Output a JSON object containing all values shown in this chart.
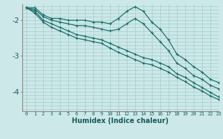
{
  "xlabel": "Humidex (Indice chaleur)",
  "bg_color": "#cce8e8",
  "grid_color": "#aacfcf",
  "line_color": "#1a6e6a",
  "xlim": [
    -0.5,
    23
  ],
  "ylim": [
    -4.55,
    -1.55
  ],
  "yticks": [
    -4,
    -3,
    -2
  ],
  "xticks": [
    0,
    1,
    2,
    3,
    4,
    5,
    6,
    7,
    8,
    9,
    10,
    11,
    12,
    13,
    14,
    15,
    16,
    17,
    18,
    19,
    20,
    21,
    22,
    23
  ],
  "series": [
    {
      "x": [
        0,
        1,
        2,
        3,
        4,
        5,
        6,
        7,
        8,
        9,
        10,
        11,
        12,
        13,
        14,
        15,
        16,
        17,
        18,
        19,
        20,
        21,
        22,
        23
      ],
      "y": [
        -1.65,
        -1.65,
        -1.85,
        -1.95,
        -1.95,
        -2.0,
        -2.0,
        -2.0,
        -2.05,
        -2.05,
        -2.1,
        -1.95,
        -1.75,
        -1.62,
        -1.75,
        -2.05,
        -2.25,
        -2.55,
        -2.95,
        -3.1,
        -3.3,
        -3.45,
        -3.65,
        -3.75
      ]
    },
    {
      "x": [
        0,
        1,
        2,
        3,
        4,
        5,
        6,
        7,
        8,
        9,
        10,
        11,
        12,
        13,
        14,
        15,
        16,
        17,
        18,
        19,
        20,
        21,
        22,
        23
      ],
      "y": [
        -1.65,
        -1.7,
        -1.9,
        -2.0,
        -2.05,
        -2.1,
        -2.15,
        -2.15,
        -2.2,
        -2.25,
        -2.3,
        -2.25,
        -2.1,
        -1.95,
        -2.1,
        -2.35,
        -2.6,
        -2.85,
        -3.2,
        -3.35,
        -3.55,
        -3.65,
        -3.82,
        -3.92
      ]
    },
    {
      "x": [
        0,
        1,
        2,
        3,
        4,
        5,
        6,
        7,
        8,
        9,
        10,
        11,
        12,
        13,
        14,
        15,
        16,
        17,
        18,
        19,
        20,
        21,
        22,
        23
      ],
      "y": [
        -1.65,
        -1.75,
        -2.0,
        -2.1,
        -2.2,
        -2.3,
        -2.4,
        -2.45,
        -2.5,
        -2.55,
        -2.65,
        -2.75,
        -2.85,
        -2.95,
        -3.05,
        -3.1,
        -3.2,
        -3.3,
        -3.5,
        -3.6,
        -3.75,
        -3.88,
        -4.02,
        -4.15
      ]
    },
    {
      "x": [
        0,
        1,
        2,
        3,
        4,
        5,
        6,
        7,
        8,
        9,
        10,
        11,
        12,
        13,
        14,
        15,
        16,
        17,
        18,
        19,
        20,
        21,
        22,
        23
      ],
      "y": [
        -1.65,
        -1.8,
        -2.05,
        -2.2,
        -2.3,
        -2.4,
        -2.5,
        -2.55,
        -2.6,
        -2.65,
        -2.78,
        -2.9,
        -3.0,
        -3.1,
        -3.2,
        -3.25,
        -3.35,
        -3.45,
        -3.6,
        -3.72,
        -3.87,
        -3.98,
        -4.12,
        -4.22
      ]
    }
  ]
}
